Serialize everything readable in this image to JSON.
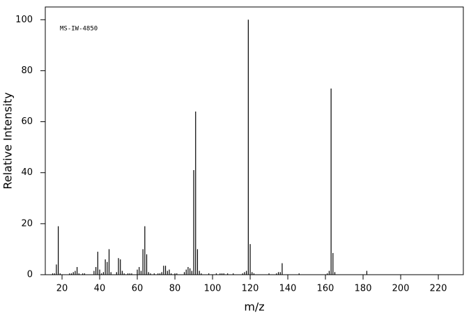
{
  "chart_data": {
    "type": "bar",
    "annotation": "MS-IW-4850",
    "x_label": "m/z",
    "y_label": "Relative Intensity",
    "x": [
      15,
      16,
      17,
      18,
      19,
      24,
      25,
      26,
      27,
      28,
      29,
      31,
      32,
      37,
      38,
      39,
      40,
      41,
      42,
      43,
      44,
      45,
      46,
      49,
      50,
      51,
      52,
      53,
      55,
      56,
      57,
      60,
      61,
      62,
      63,
      64,
      65,
      66,
      67,
      69,
      71,
      72,
      73,
      74,
      75,
      76,
      77,
      78,
      80,
      81,
      85,
      86,
      87,
      88,
      89,
      90,
      91,
      92,
      93,
      94,
      98,
      102,
      104,
      105,
      106,
      108,
      111,
      116,
      117,
      118,
      119,
      120,
      121,
      122,
      130,
      134,
      135,
      136,
      137,
      146,
      161,
      162,
      163,
      164,
      165,
      182
    ],
    "values": [
      0.5,
      0.5,
      4,
      19,
      0.5,
      0.5,
      0.5,
      1,
      1.5,
      3,
      0.5,
      0.5,
      0.5,
      1.5,
      3,
      9,
      2,
      0.5,
      1,
      6,
      5,
      10,
      1,
      1,
      6.5,
      6,
      1.5,
      0.5,
      0.5,
      0.5,
      0.5,
      2,
      3,
      1.5,
      10,
      19,
      8,
      1,
      0.5,
      0.5,
      0.5,
      0.5,
      1,
      3.5,
      3.5,
      1.5,
      2,
      0.5,
      0.5,
      0.5,
      1,
      2,
      3,
      2.5,
      1.5,
      41,
      64,
      10,
      1.5,
      0.5,
      0.5,
      0.5,
      0.5,
      0.5,
      0.5,
      0.5,
      0.5,
      0.5,
      1,
      1.5,
      100,
      12,
      1,
      0.5,
      0.5,
      0.5,
      1,
      1,
      4.5,
      0.5,
      0.5,
      1.5,
      73,
      8.5,
      1,
      1.5
    ],
    "color": "#000000",
    "xlim": [
      11.1,
      233.3
    ],
    "xticks": [
      20,
      40,
      60,
      80,
      100,
      120,
      140,
      160,
      180,
      200,
      220
    ],
    "ylim": [
      0,
      105
    ],
    "yticks": [
      0,
      20,
      40,
      60,
      80,
      100
    ]
  }
}
